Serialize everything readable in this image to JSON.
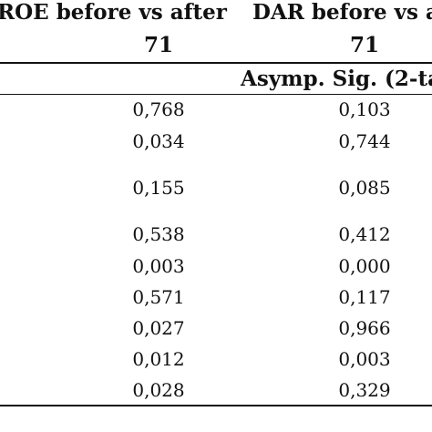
{
  "table": {
    "header1": [
      "ROE before vs after",
      "DAR before vs a"
    ],
    "header2": [
      "71",
      "71"
    ],
    "subheader": "Asymp. Sig. (2-ta",
    "rows": [
      [
        "0,768",
        "0,103"
      ],
      [
        "0,034",
        "0,744"
      ],
      [
        "0,155",
        "0,085"
      ],
      [
        "0,538",
        "0,412"
      ],
      [
        "0,003",
        "0,000"
      ],
      [
        "0,571",
        "0,117"
      ],
      [
        "0,027",
        "0,966"
      ],
      [
        "0,012",
        "0,003"
      ],
      [
        "0,028",
        "0,329"
      ]
    ]
  }
}
